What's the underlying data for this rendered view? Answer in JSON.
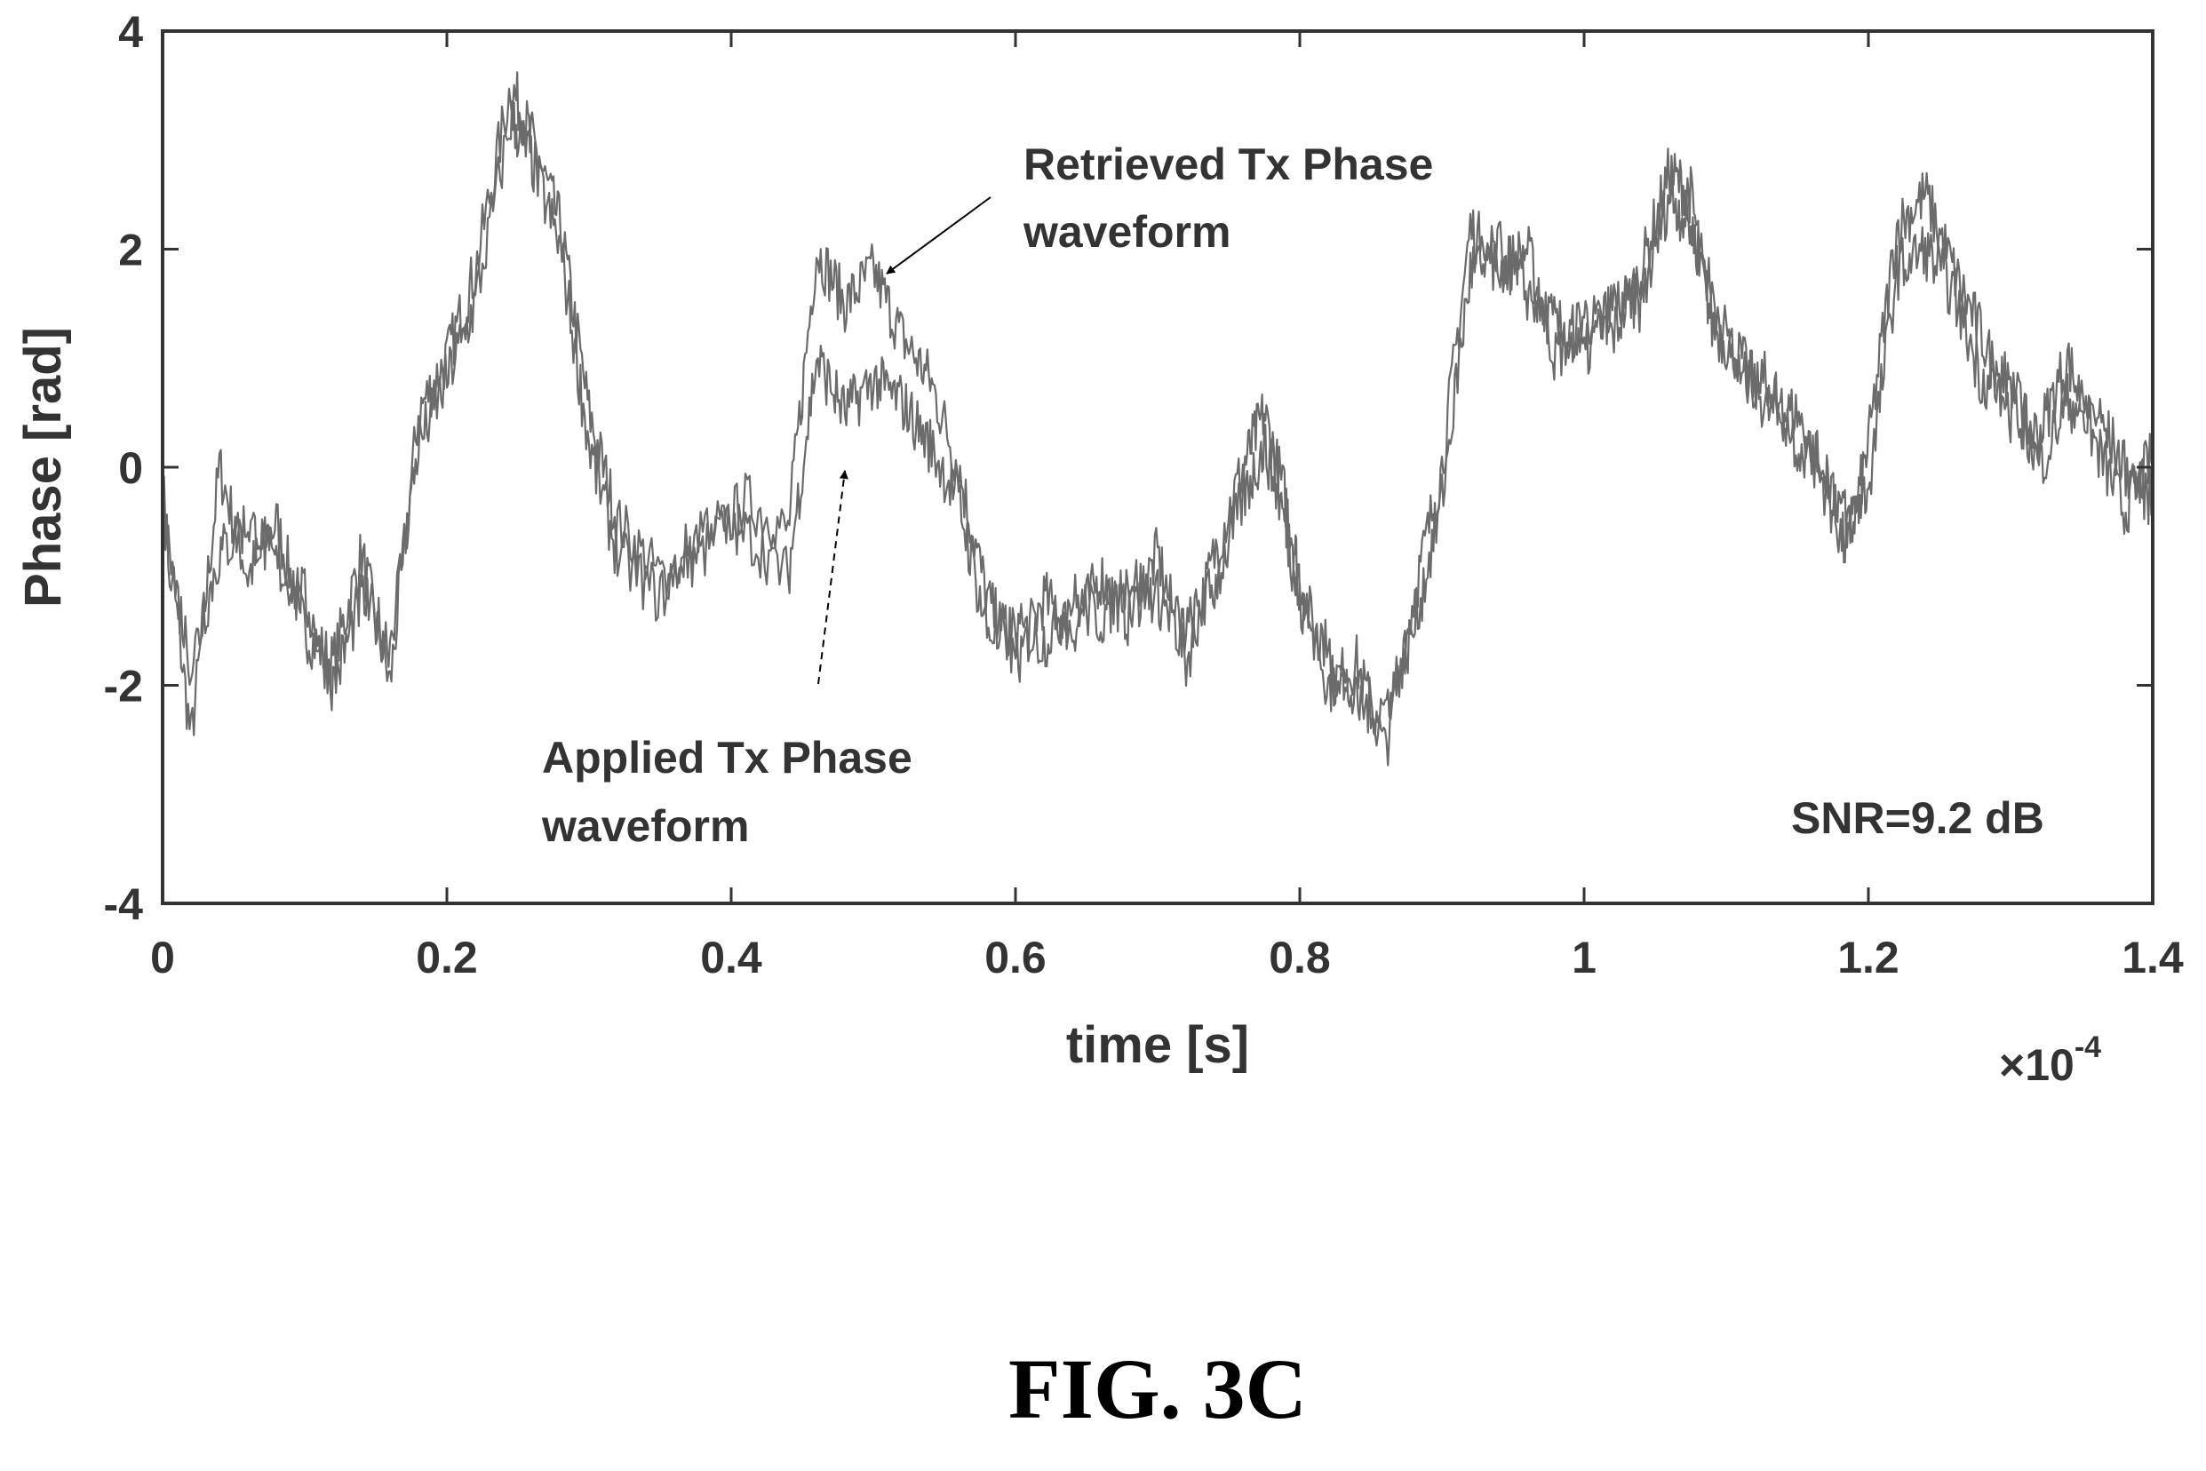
{
  "chart_data": {
    "type": "line",
    "xlabel": "time [s]",
    "ylabel": "Phase [rad]",
    "x_multiplier": "×10",
    "x_multiplier_exponent": "-4",
    "xlim": [
      0,
      1.4
    ],
    "ylim": [
      -4,
      4
    ],
    "x_ticks": [
      "0",
      "0.2",
      "0.4",
      "0.6",
      "0.8",
      "1",
      "1.2",
      "1.4"
    ],
    "y_ticks": [
      "4",
      "2",
      "0",
      "-2",
      "-4"
    ],
    "grid": false,
    "line_color": "#6b6b6b",
    "series": [
      {
        "x": [
          0,
          0.02,
          0.04,
          0.06,
          0.08,
          0.1,
          0.12,
          0.14,
          0.16,
          0.18,
          0.2,
          0.22,
          0.245,
          0.26,
          0.28,
          0.3,
          0.32,
          0.35,
          0.38,
          0.41,
          0.44,
          0.46,
          0.48,
          0.5,
          0.52,
          0.54,
          0.56,
          0.58,
          0.6,
          0.62,
          0.64,
          0.66,
          0.68,
          0.7,
          0.72,
          0.74,
          0.76,
          0.775,
          0.79,
          0.8,
          0.82,
          0.84,
          0.86,
          0.88,
          0.9,
          0.92,
          0.94,
          0.96,
          0.98,
          1.0,
          1.02,
          1.04,
          1.06,
          1.075,
          1.09,
          1.11,
          1.13,
          1.15,
          1.17,
          1.185,
          1.2,
          1.22,
          1.24,
          1.26,
          1.28,
          1.3,
          1.32,
          1.34,
          1.36,
          1.38,
          1.4
        ],
        "y": [
          -0.2,
          -2.5,
          0.0,
          -1.0,
          -0.5,
          -1.5,
          -1.8,
          -0.8,
          -2.0,
          0.5,
          1.0,
          1.8,
          3.5,
          3.0,
          2.2,
          0.5,
          -0.5,
          -1.0,
          -0.8,
          -0.3,
          -0.6,
          2.0,
          1.5,
          1.8,
          1.2,
          0.8,
          0.0,
          -1.2,
          -1.8,
          -1.2,
          -1.5,
          -1.0,
          -1.4,
          -0.8,
          -1.8,
          -0.8,
          0.0,
          0.5,
          -0.3,
          -1.0,
          -2.0,
          -1.8,
          -2.6,
          -1.2,
          0.0,
          2.2,
          1.8,
          2.0,
          1.0,
          1.4,
          1.2,
          1.8,
          2.7,
          2.5,
          1.3,
          1.0,
          0.5,
          0.5,
          -0.2,
          -0.8,
          0.2,
          2.2,
          2.5,
          1.8,
          1.2,
          0.5,
          0.3,
          1.0,
          0.2,
          -0.4,
          0.1
        ]
      },
      {
        "x": [
          0,
          0.02,
          0.04,
          0.06,
          0.08,
          0.1,
          0.12,
          0.14,
          0.16,
          0.18,
          0.2,
          0.22,
          0.245,
          0.26,
          0.28,
          0.3,
          0.32,
          0.35,
          0.38,
          0.41,
          0.44,
          0.46,
          0.48,
          0.5,
          0.52,
          0.54,
          0.56,
          0.58,
          0.6,
          0.62,
          0.64,
          0.66,
          0.68,
          0.7,
          0.72,
          0.74,
          0.76,
          0.775,
          0.79,
          0.8,
          0.82,
          0.84,
          0.86,
          0.88,
          0.9,
          0.92,
          0.94,
          0.96,
          0.98,
          1.0,
          1.02,
          1.04,
          1.06,
          1.075,
          1.09,
          1.11,
          1.13,
          1.15,
          1.17,
          1.185,
          1.2,
          1.22,
          1.24,
          1.26,
          1.28,
          1.3,
          1.32,
          1.34,
          1.36,
          1.38,
          1.4
        ],
        "y": [
          -0.5,
          -1.8,
          -0.8,
          -0.5,
          -0.9,
          -1.2,
          -2.0,
          -1.2,
          -1.6,
          0.2,
          0.8,
          1.5,
          3.2,
          2.8,
          2.0,
          0.2,
          -0.8,
          -1.2,
          -0.5,
          -0.6,
          -1.0,
          1.0,
          0.5,
          0.8,
          0.6,
          0.2,
          -0.3,
          -1.5,
          -1.5,
          -1.6,
          -1.2,
          -1.4,
          -1.0,
          -1.2,
          -1.5,
          -1.1,
          -0.3,
          0.2,
          -0.5,
          -1.3,
          -1.7,
          -2.2,
          -2.2,
          -1.5,
          -0.3,
          1.8,
          2.0,
          1.6,
          1.3,
          1.0,
          1.5,
          1.5,
          2.5,
          2.2,
          1.6,
          0.8,
          0.8,
          0.2,
          0.0,
          -0.5,
          -0.2,
          1.8,
          2.0,
          1.6,
          0.8,
          0.8,
          0.0,
          0.6,
          0.5,
          0.0,
          -0.3
        ]
      }
    ],
    "annotations": {
      "retrieved_line1": "Retrieved Tx Phase",
      "retrieved_line2": "waveform",
      "applied_line1": "Applied Tx Phase",
      "applied_line2": "waveform",
      "snr": "SNR=9.2 dB"
    }
  },
  "caption": "FIG. 3C"
}
